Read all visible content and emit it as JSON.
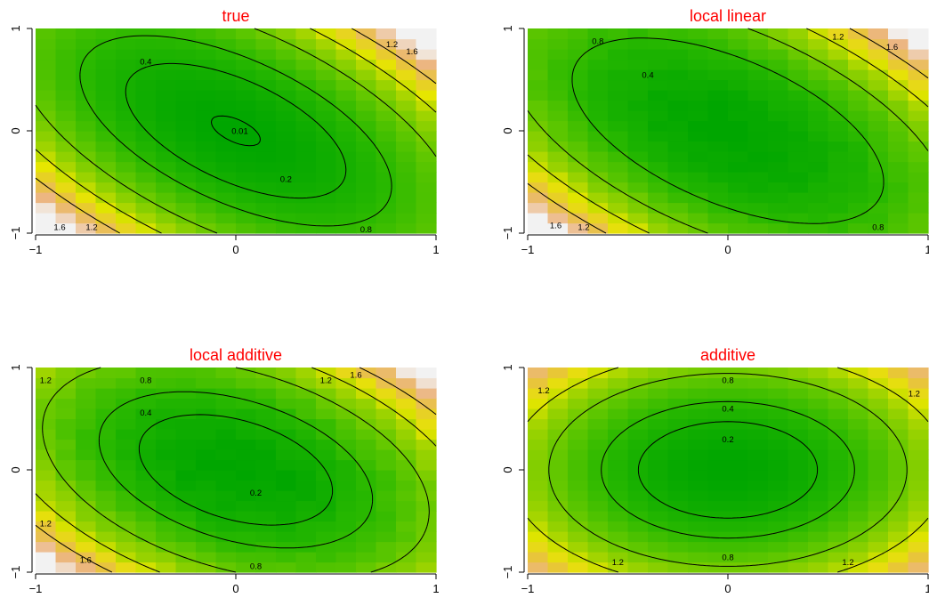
{
  "chart_data": [
    {
      "type": "heatmap",
      "title": "true",
      "xlim": [
        -1,
        1
      ],
      "ylim": [
        -1,
        1
      ],
      "xticks": [
        "-1",
        "0",
        "1"
      ],
      "yticks": [
        "-1",
        "0",
        "1"
      ],
      "surface": {
        "a": 1.0,
        "b": 0.7,
        "c": 1.3,
        "noise": 0.0
      },
      "contours": [
        {
          "level": 0.01,
          "label": "0.01",
          "label_x": 0.02,
          "label_y": 0.0
        },
        {
          "level": 0.2,
          "label": "0.2",
          "label_x": 0.25,
          "label_y": -0.47
        },
        {
          "level": 0.4,
          "label": "0.4",
          "label_x": -0.45,
          "label_y": 0.68
        },
        {
          "level": 0.8,
          "label": "0.8",
          "label_x": 0.65,
          "label_y": -0.96
        },
        {
          "level": 1.2,
          "label": "1.2",
          "label_x": 0.78,
          "label_y": 0.85
        },
        {
          "level": 1.2,
          "label": "1.2",
          "label_x": -0.72,
          "label_y": -0.94
        },
        {
          "level": 1.6,
          "label": "1.6",
          "label_x": 0.88,
          "label_y": 0.78
        },
        {
          "level": 1.6,
          "label": "1.6",
          "label_x": -0.88,
          "label_y": -0.94
        }
      ]
    },
    {
      "type": "heatmap",
      "title": "local linear",
      "xlim": [
        -1,
        1
      ],
      "ylim": [
        -1,
        1
      ],
      "xticks": [
        "-1",
        "0",
        "1"
      ],
      "yticks": [
        "-1",
        "0",
        "1"
      ],
      "surface": {
        "a": 0.95,
        "b": 0.7,
        "c": 1.2,
        "noise": 0.08
      },
      "contours": [
        {
          "level": 0.4,
          "label": "0.4",
          "label_x": -0.4,
          "label_y": 0.55
        },
        {
          "level": 0.8,
          "label": "0.8",
          "label_x": -0.65,
          "label_y": 0.88
        },
        {
          "level": 0.8,
          "label": "0.8",
          "label_x": 0.75,
          "label_y": -0.94
        },
        {
          "level": 1.2,
          "label": "1.2",
          "label_x": 0.55,
          "label_y": 0.92
        },
        {
          "level": 1.2,
          "label": "1.2",
          "label_x": -0.72,
          "label_y": -0.94
        },
        {
          "level": 1.6,
          "label": "1.6",
          "label_x": 0.82,
          "label_y": 0.82
        },
        {
          "level": 1.6,
          "label": "1.6",
          "label_x": -0.86,
          "label_y": -0.92
        }
      ]
    },
    {
      "type": "heatmap",
      "title": "local additive",
      "xlim": [
        -1,
        1
      ],
      "ylim": [
        -1,
        1
      ],
      "xticks": [
        "-1",
        "0",
        "1"
      ],
      "yticks": [
        "-1",
        "0",
        "1"
      ],
      "surface": {
        "a": 1.0,
        "b": 0.8,
        "c": 0.9,
        "noise": 0.1
      },
      "contours": [
        {
          "level": 0.2,
          "label": "0.2",
          "label_x": 0.1,
          "label_y": -0.22
        },
        {
          "level": 0.4,
          "label": "0.4",
          "label_x": -0.45,
          "label_y": 0.56
        },
        {
          "level": 0.8,
          "label": "0.8",
          "label_x": -0.45,
          "label_y": 0.88
        },
        {
          "level": 0.8,
          "label": "0.8",
          "label_x": 0.1,
          "label_y": -0.94
        },
        {
          "level": 1.2,
          "label": "1.2",
          "label_x": -0.95,
          "label_y": 0.88
        },
        {
          "level": 1.2,
          "label": "1.2",
          "label_x": -0.95,
          "label_y": -0.52
        },
        {
          "level": 1.2,
          "label": "1.2",
          "label_x": 0.45,
          "label_y": 0.88
        },
        {
          "level": 1.6,
          "label": "1.6",
          "label_x": 0.6,
          "label_y": 0.93
        },
        {
          "level": 1.6,
          "label": "1.6",
          "label_x": -0.75,
          "label_y": -0.88
        }
      ]
    },
    {
      "type": "heatmap",
      "title": "additive",
      "xlim": [
        -1,
        1
      ],
      "ylim": [
        -1,
        1
      ],
      "xticks": [
        "-1",
        "0",
        "1"
      ],
      "yticks": [
        "-1",
        "0",
        "1"
      ],
      "surface": {
        "a": 1.0,
        "b": 0.9,
        "c": 0.0,
        "noise": 0.0
      },
      "contours": [
        {
          "level": 0.2,
          "label": "0.2",
          "label_x": 0.0,
          "label_y": 0.3
        },
        {
          "level": 0.4,
          "label": "0.4",
          "label_x": 0.0,
          "label_y": 0.6
        },
        {
          "level": 0.8,
          "label": "0.8",
          "label_x": 0.0,
          "label_y": 0.88
        },
        {
          "level": 0.8,
          "label": "0.8",
          "label_x": 0.0,
          "label_y": -0.85
        },
        {
          "level": 1.2,
          "label": "1.2",
          "label_x": -0.92,
          "label_y": 0.78
        },
        {
          "level": 1.2,
          "label": "1.2",
          "label_x": 0.93,
          "label_y": 0.75
        },
        {
          "level": 1.2,
          "label": "1.2",
          "label_x": -0.55,
          "label_y": -0.9
        },
        {
          "level": 1.2,
          "label": "1.2",
          "label_x": 0.6,
          "label_y": -0.9
        }
      ]
    }
  ]
}
